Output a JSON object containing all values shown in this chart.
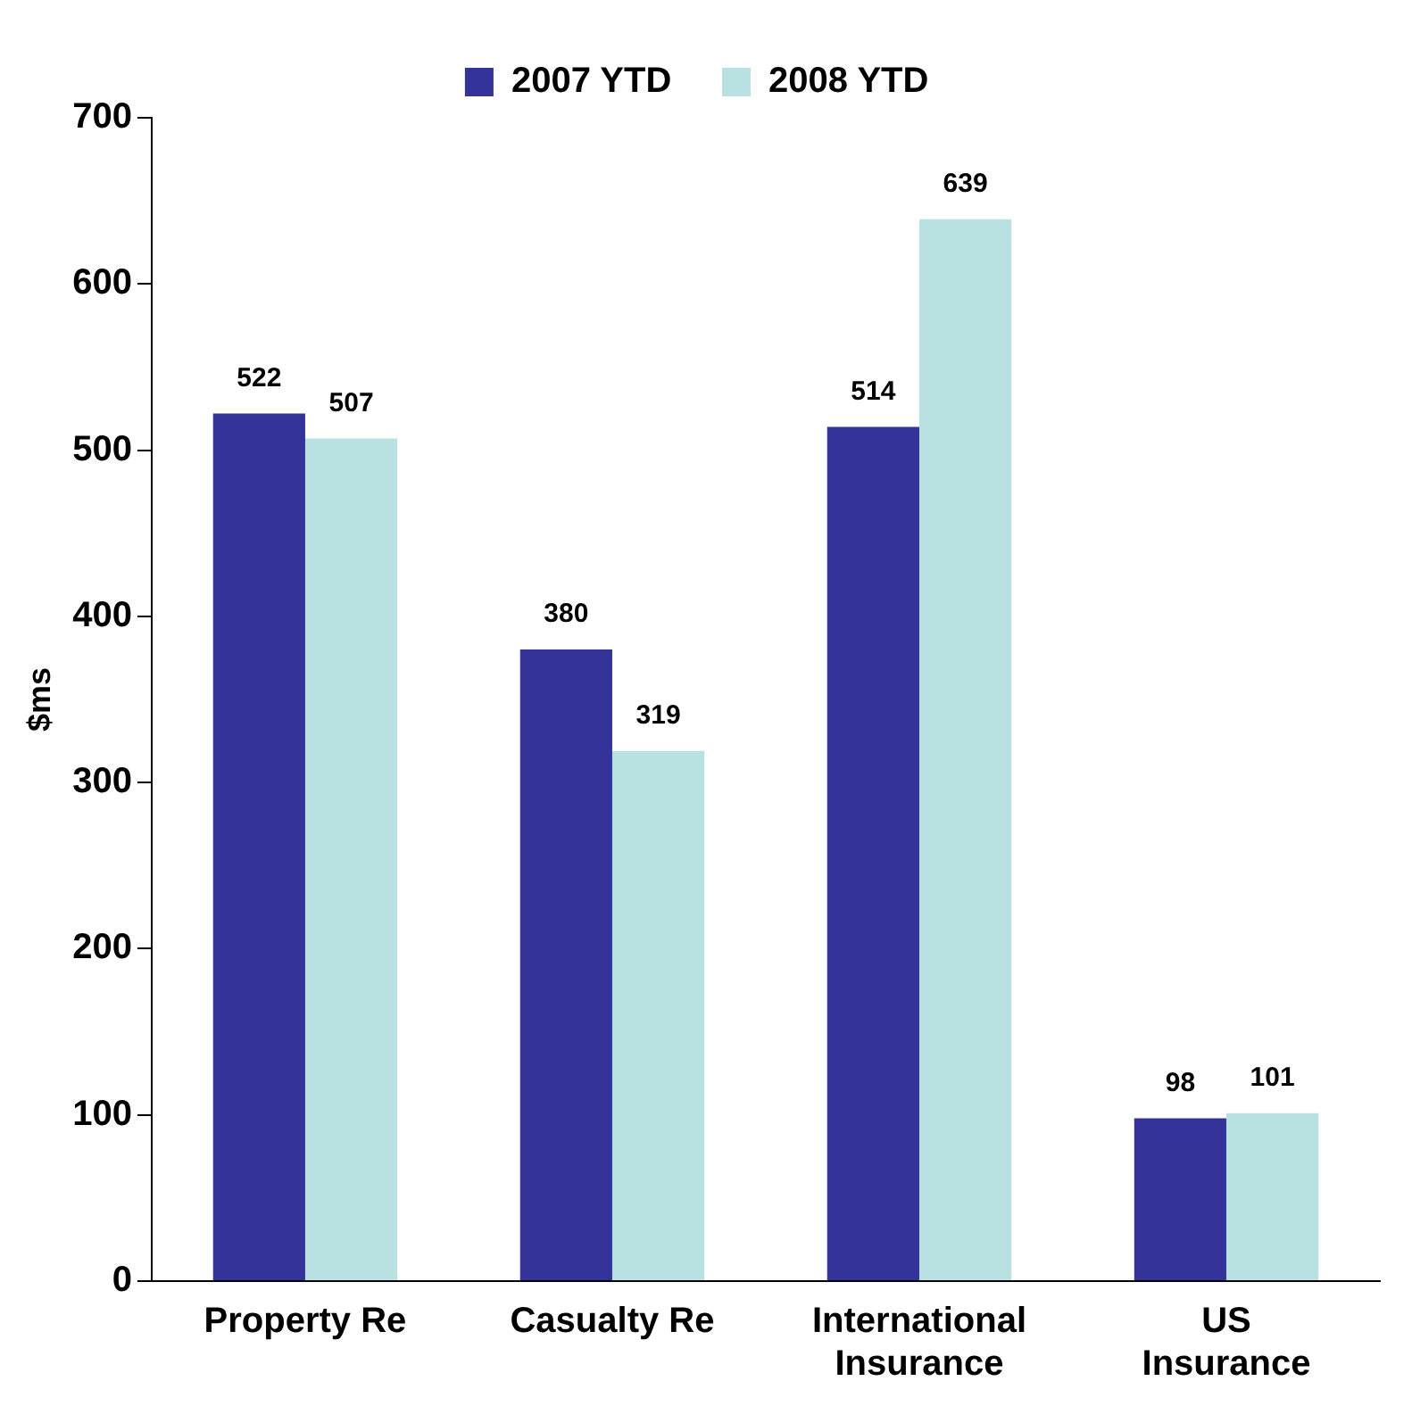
{
  "chart_data": {
    "type": "bar",
    "ylabel": "$ms",
    "categories": [
      "Property Re",
      "Casualty Re",
      "International Insurance",
      "US Insurance"
    ],
    "series": [
      {
        "name": "2007 YTD",
        "color": "#333399",
        "values": [
          522,
          380,
          514,
          98
        ]
      },
      {
        "name": "2008 YTD",
        "color": "#b9e1e1",
        "values": [
          507,
          319,
          639,
          101
        ]
      }
    ],
    "ylim": [
      0,
      700
    ],
    "yticks": [
      0,
      100,
      200,
      300,
      400,
      500,
      600,
      700
    ],
    "grid": false,
    "legend": "top",
    "data_labels": true
  }
}
